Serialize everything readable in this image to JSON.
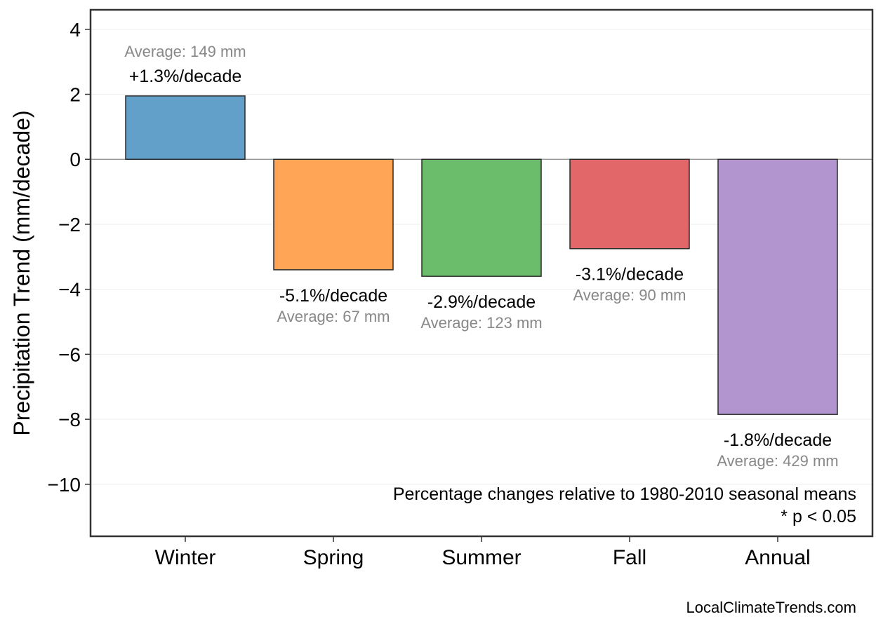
{
  "chart_data": {
    "type": "bar",
    "categories": [
      "Winter",
      "Spring",
      "Summer",
      "Fall",
      "Annual"
    ],
    "values": [
      1.95,
      -3.4,
      -3.6,
      -2.75,
      -7.85
    ],
    "colors": [
      "#62a0ca",
      "#ffa555",
      "#6bbc6b",
      "#e26768",
      "#b294cf"
    ],
    "pct_labels": [
      "+1.3%/decade",
      "-5.1%/decade",
      "-2.9%/decade",
      "-3.1%/decade",
      "-1.8%/decade"
    ],
    "avg_labels": [
      "Average: 149 mm",
      "Average: 67 mm",
      "Average: 123 mm",
      "Average: 90 mm",
      "Average: 429 mm"
    ],
    "ylabel": "Precipitation Trend (mm/decade)",
    "xlabel": "",
    "ylim": [
      -11.6,
      4.6
    ],
    "yticks": [
      4,
      2,
      0,
      -2,
      -4,
      -6,
      -8,
      -10
    ],
    "ytick_labels": [
      "4",
      "2",
      "0",
      "−2",
      "−4",
      "−6",
      "−8",
      "−10"
    ],
    "grid": true,
    "notes": [
      "Percentage changes relative to 1980-2010 seasonal means",
      "* p < 0.05"
    ],
    "credit": "LocalClimateTrends.com"
  }
}
